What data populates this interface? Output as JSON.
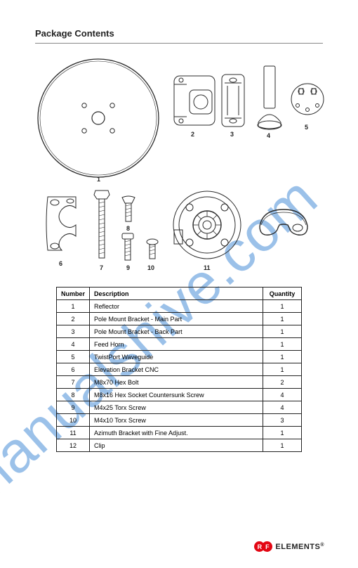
{
  "header_title": "Package Contents",
  "watermark_text": "manualshive.com",
  "parts_labels": {
    "p1": "1",
    "p2": "2",
    "p3": "3",
    "p4": "4",
    "p5": "5",
    "p6": "6",
    "p7": "7",
    "p8": "8",
    "p9": "9",
    "p10": "10",
    "p11": "11"
  },
  "table": {
    "headers": {
      "num": "Number",
      "desc": "Description",
      "qty": "Quantity"
    },
    "rows": [
      {
        "num": "1",
        "desc": "Reflector",
        "qty": "1"
      },
      {
        "num": "2",
        "desc": "Pole Mount Bracket - Main Part",
        "qty": "1"
      },
      {
        "num": "3",
        "desc": "Pole Mount Bracket - Back Part",
        "qty": "1"
      },
      {
        "num": "4",
        "desc": "Feed Horn",
        "qty": "1"
      },
      {
        "num": "5",
        "desc": "TwistPort Waveguide",
        "qty": "1"
      },
      {
        "num": "6",
        "desc": "Elevation Bracket CNC",
        "qty": "1"
      },
      {
        "num": "7",
        "desc": "M8x70 Hex Bolt",
        "qty": "2"
      },
      {
        "num": "8",
        "desc": "M8x16 Hex Socket Countersunk Screw",
        "qty": "4"
      },
      {
        "num": "9",
        "desc": "M4x25 Torx Screw",
        "qty": "4"
      },
      {
        "num": "10",
        "desc": "M4x10 Torx Screw",
        "qty": "3"
      },
      {
        "num": "11",
        "desc": "Azimuth Bracket with Fine Adjust.",
        "qty": "1"
      },
      {
        "num": "12",
        "desc": "Clip",
        "qty": "1"
      }
    ]
  },
  "logo": {
    "r": "R",
    "f": "F",
    "brand": "ELEMENTS",
    "reg": "®"
  },
  "colors": {
    "wm": "#4a8fd8",
    "red": "#e30613",
    "stroke": "#2b2b2b"
  }
}
